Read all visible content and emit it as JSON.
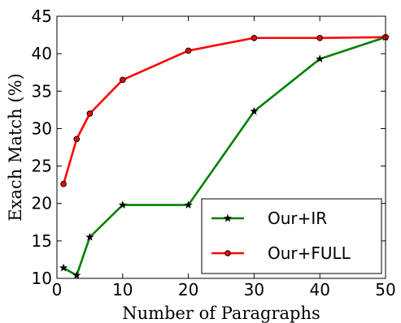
{
  "chart_data": {
    "type": "line",
    "title": "",
    "xlabel": "Number of Paragraphs",
    "ylabel": "Exach Match (%)",
    "xlim": [
      0,
      50
    ],
    "ylim": [
      10,
      45
    ],
    "xticks": [
      "0",
      "10",
      "20",
      "30",
      "40",
      "50"
    ],
    "yticks": [
      "10",
      "15",
      "20",
      "25",
      "30",
      "35",
      "40",
      "45"
    ],
    "grid": false,
    "legend_position": "lower-right",
    "series": [
      {
        "name": "Our+IR",
        "color": "#008000",
        "marker": "star",
        "x": [
          1,
          3,
          5,
          10,
          20,
          30,
          40,
          50
        ],
        "y": [
          11.4,
          10.4,
          15.5,
          19.8,
          19.8,
          32.3,
          39.3,
          42.2
        ]
      },
      {
        "name": "Our+FULL",
        "color": "#ff0000",
        "marker": "circle",
        "x": [
          1,
          3,
          5,
          10,
          20,
          30,
          40,
          50
        ],
        "y": [
          22.6,
          28.6,
          32.0,
          36.5,
          40.4,
          42.1,
          42.1,
          42.2
        ]
      }
    ]
  }
}
